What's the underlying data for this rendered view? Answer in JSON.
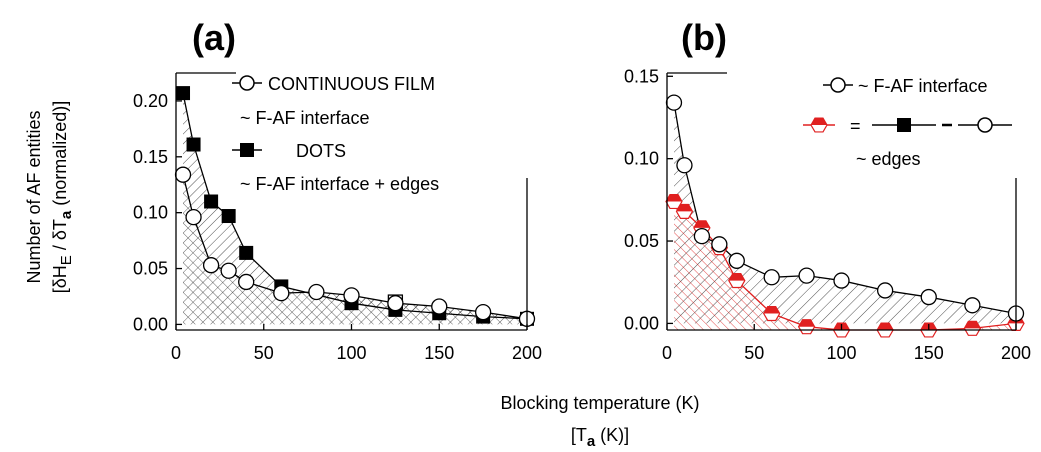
{
  "figure": {
    "ylabel_line1": "Number of AF entities",
    "ylabel_line2_prefix": "[δH",
    "ylabel_line2_sub1": "E",
    "ylabel_line2_mid": " / δT",
    "ylabel_line2_sub2": "a",
    "ylabel_line2_suffix": " (normalized)]",
    "xlabel_line1": "Blocking temperature (K)",
    "xlabel_line2_prefix": "[T",
    "xlabel_line2_sub": "a",
    "xlabel_line2_suffix": " (K)]"
  },
  "chart_data": [
    {
      "type": "line",
      "panel_label": "(a)",
      "xlim": [
        0,
        200
      ],
      "ylim": [
        -0.005,
        0.225
      ],
      "xticks": [
        0,
        50,
        100,
        150,
        200
      ],
      "yticks": [
        0.0,
        0.05,
        0.1,
        0.15,
        0.2
      ],
      "ytick_labels": [
        "0.00",
        "0.05",
        "0.10",
        "0.15",
        "0.20"
      ],
      "legend": [
        {
          "marker": "open-circle",
          "text": "CONTINUOUS FILM"
        },
        {
          "marker": "none",
          "text": "~ F-AF interface"
        },
        {
          "marker": "filled-square",
          "text": "DOTS"
        },
        {
          "marker": "none",
          "text": "~ F-AF interface + edges"
        }
      ],
      "series": [
        {
          "marker": "open-circle",
          "x": [
            4,
            10,
            20,
            30,
            40,
            60,
            80,
            100,
            125,
            150,
            175,
            200
          ],
          "y": [
            0.134,
            0.096,
            0.053,
            0.048,
            0.038,
            0.028,
            0.029,
            0.026,
            0.019,
            0.016,
            0.011,
            0.005
          ]
        },
        {
          "marker": "filled-square",
          "x": [
            4,
            10,
            20,
            30,
            40,
            60,
            100,
            125,
            150,
            175,
            200
          ],
          "y": [
            0.207,
            0.161,
            0.11,
            0.097,
            0.064,
            0.034,
            0.019,
            0.013,
            0.01,
            0.007,
            0.005
          ]
        },
        {
          "marker": "open-square",
          "x": [
            125
          ],
          "y": [
            0.02
          ]
        }
      ]
    },
    {
      "type": "line",
      "panel_label": "(b)",
      "xlim": [
        0,
        200
      ],
      "ylim": [
        -0.004,
        0.152
      ],
      "xticks": [
        0,
        50,
        100,
        150,
        200
      ],
      "yticks": [
        0.0,
        0.05,
        0.1,
        0.15
      ],
      "ytick_labels": [
        "0.00",
        "0.05",
        "0.10",
        "0.15"
      ],
      "legend": [
        {
          "marker": "open-circle",
          "text": "~ F-AF interface"
        },
        {
          "marker": "half-red",
          "text": "="
        },
        {
          "marker": "none",
          "text": "~ edges"
        }
      ],
      "series": [
        {
          "marker": "open-circle",
          "x": [
            4,
            10,
            20,
            30,
            40,
            60,
            80,
            100,
            125,
            150,
            175,
            200
          ],
          "y": [
            0.134,
            0.096,
            0.053,
            0.048,
            0.038,
            0.028,
            0.029,
            0.026,
            0.02,
            0.016,
            0.011,
            0.006
          ]
        },
        {
          "marker": "half-red",
          "color": "#e02020",
          "x": [
            4,
            10,
            20,
            30,
            40,
            60,
            80,
            100,
            125,
            150,
            175,
            200
          ],
          "y": [
            0.074,
            0.068,
            0.058,
            0.046,
            0.026,
            0.006,
            -0.002,
            -0.004,
            -0.004,
            -0.004,
            -0.003,
            0.0
          ]
        }
      ]
    }
  ]
}
